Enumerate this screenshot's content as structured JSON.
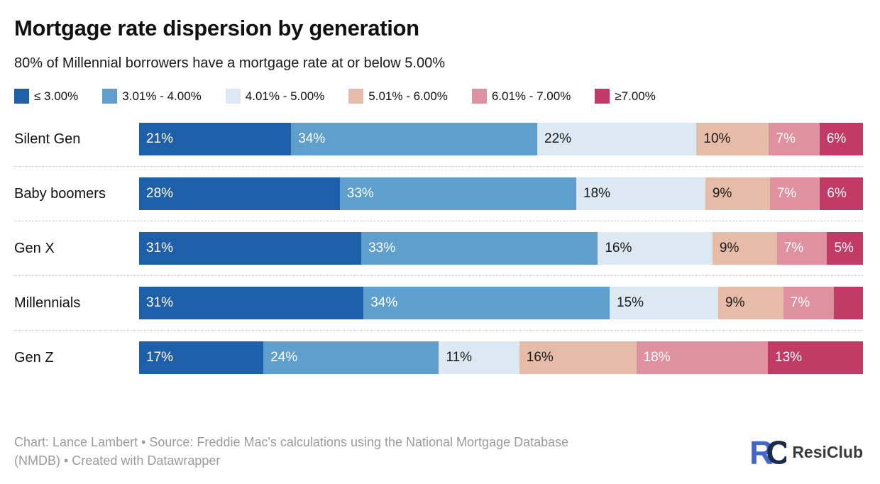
{
  "page": {
    "title": "Mortgage rate dispersion by generation",
    "subtitle": "80% of Millennial borrowers have a mortgage rate at or below 5.00%"
  },
  "chart_data": {
    "type": "bar",
    "orientation": "horizontal",
    "stacked": true,
    "unit": "%",
    "legend_position": "top",
    "series_names": [
      "≤ 3.00%",
      "3.01% - 4.00%",
      "4.01% - 5.00%",
      "5.01% - 6.00%",
      "6.01% - 7.00%",
      "≥7.00%"
    ],
    "series_colors": [
      "#1e5fa9",
      "#5e9fcd",
      "#dce9f2",
      "#e6bca8",
      "#e0919f",
      "#c23a66"
    ],
    "series_text_colors": [
      "#ffffff",
      "#ffffff",
      "#1a1a1a",
      "#1a1a1a",
      "#ffffff",
      "#ffffff"
    ],
    "categories": [
      "Silent Gen",
      "Baby boomers",
      "Gen X",
      "Millennials",
      "Gen Z"
    ],
    "rows": [
      {
        "label": "Silent Gen",
        "values": [
          21,
          34,
          22,
          10,
          7,
          6
        ],
        "display_labels": [
          "21%",
          "34%",
          "22%",
          "10%",
          "7%",
          "6%"
        ]
      },
      {
        "label": "Baby boomers",
        "values": [
          28,
          33,
          18,
          9,
          7,
          6
        ],
        "display_labels": [
          "28%",
          "33%",
          "18%",
          "9%",
          "7%",
          "6%"
        ]
      },
      {
        "label": "Gen X",
        "values": [
          31,
          33,
          16,
          9,
          7,
          5
        ],
        "display_labels": [
          "31%",
          "33%",
          "16%",
          "9%",
          "7%",
          "5%"
        ]
      },
      {
        "label": "Millennials",
        "values": [
          31,
          34,
          15,
          9,
          7,
          4
        ],
        "display_labels": [
          "31%",
          "34%",
          "15%",
          "9%",
          "7%",
          ""
        ]
      },
      {
        "label": "Gen Z",
        "values": [
          17,
          24,
          11,
          16,
          18,
          13
        ],
        "display_labels": [
          "17%",
          "24%",
          "11%",
          "16%",
          "18%",
          "13%"
        ]
      }
    ]
  },
  "footer": {
    "credit": "Chart: Lance Lambert • Source: Freddie Mac's calculations using the National Mortgage Database (NMDB) • Created with Datawrapper",
    "brand": "ResiClub"
  },
  "logo_colors": {
    "r": "#4169cd",
    "c": "#1b2a4a"
  }
}
